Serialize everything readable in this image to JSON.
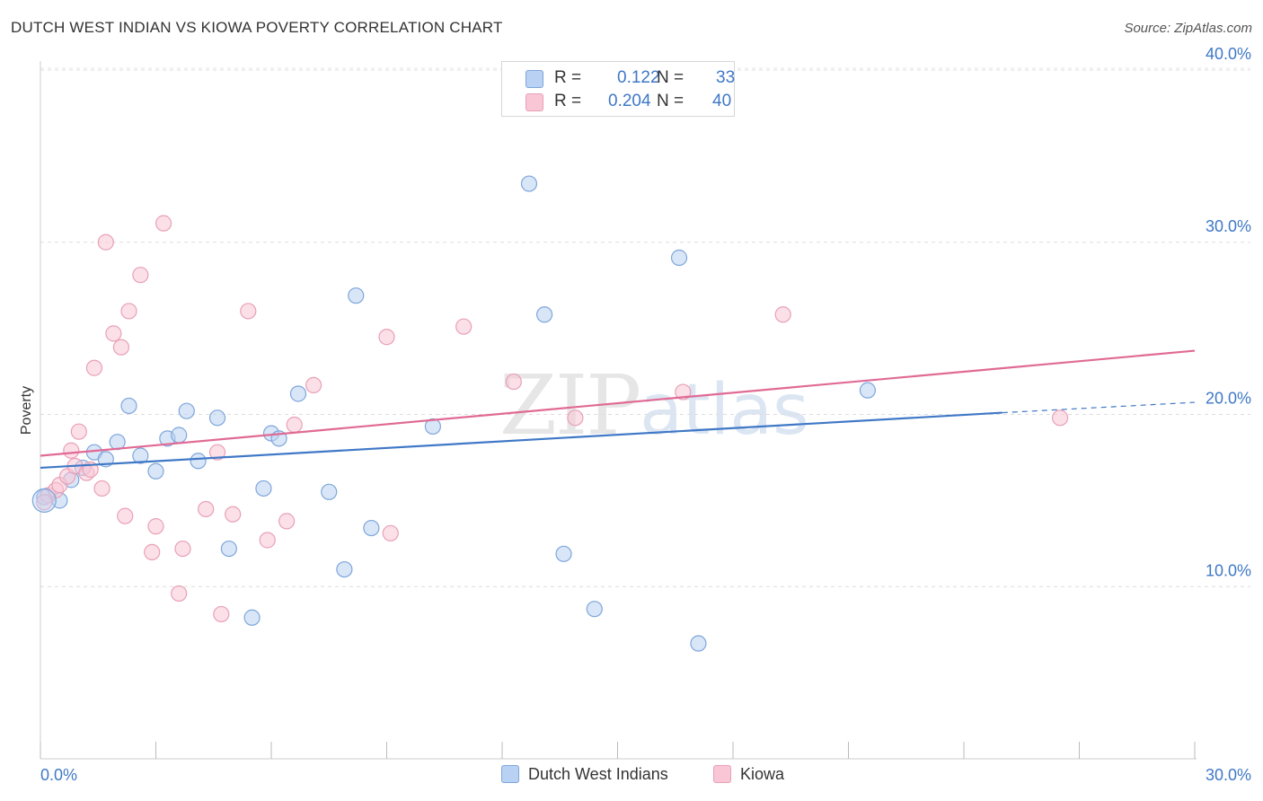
{
  "title": "DUTCH WEST INDIAN VS KIOWA POVERTY CORRELATION CHART",
  "source": "Source: ZipAtlas.com",
  "watermark": {
    "zip": "ZIP",
    "atlas": "atlas"
  },
  "legend": {
    "rows": [
      {
        "r_label": "R =",
        "r_value": "0.122",
        "n_label": "N =",
        "n_value": "33",
        "color": "#b9d2f3",
        "border": "#7ea6da"
      },
      {
        "r_label": "R =",
        "r_value": "0.204",
        "n_label": "N =",
        "n_value": "40",
        "color": "#f9c6d6",
        "border": "#e8a0b8"
      }
    ]
  },
  "bottom_legend": [
    {
      "label": "Dutch West Indians",
      "color": "#b9d2f3",
      "border": "#7ea6da"
    },
    {
      "label": "Kiowa",
      "color": "#f9c6d6",
      "border": "#e8a0b8"
    }
  ],
  "chart_data": {
    "type": "scatter",
    "title": "DUTCH WEST INDIAN VS KIOWA POVERTY CORRELATION CHART",
    "xlabel": "",
    "ylabel": "Poverty",
    "xlim": [
      0,
      30
    ],
    "ylim": [
      0,
      40
    ],
    "x_tick_labels": [
      "0.0%",
      "30.0%"
    ],
    "y_ticks": [
      10,
      20,
      30,
      40
    ],
    "y_tick_labels": [
      "10.0%",
      "20.0%",
      "30.0%",
      "40.0%"
    ],
    "grid": true,
    "series": [
      {
        "name": "Dutch West Indians",
        "color": "#7ea6da",
        "fill": "#b9d2f3",
        "line_color": "#3f78c6",
        "trend": {
          "x0": 0,
          "y0": 16.9,
          "x1": 25,
          "y1": 20.1,
          "dash_to_x": 30,
          "dash_to_y": 20.7
        },
        "points": [
          [
            0.1,
            15.2
          ],
          [
            0.5,
            15.0
          ],
          [
            0.8,
            16.2
          ],
          [
            1.1,
            16.9
          ],
          [
            1.4,
            17.8
          ],
          [
            1.7,
            17.4
          ],
          [
            2.0,
            18.4
          ],
          [
            2.3,
            20.5
          ],
          [
            2.6,
            17.6
          ],
          [
            3.0,
            16.7
          ],
          [
            3.3,
            18.6
          ],
          [
            3.6,
            18.8
          ],
          [
            3.8,
            20.2
          ],
          [
            4.1,
            17.3
          ],
          [
            4.6,
            19.8
          ],
          [
            4.9,
            12.2
          ],
          [
            5.5,
            8.2
          ],
          [
            5.8,
            15.7
          ],
          [
            6.0,
            18.9
          ],
          [
            6.2,
            18.6
          ],
          [
            6.7,
            21.2
          ],
          [
            7.5,
            15.5
          ],
          [
            7.9,
            11.0
          ],
          [
            8.2,
            26.9
          ],
          [
            8.6,
            13.4
          ],
          [
            10.2,
            19.3
          ],
          [
            12.7,
            33.4
          ],
          [
            13.1,
            25.8
          ],
          [
            13.6,
            11.9
          ],
          [
            14.4,
            8.7
          ],
          [
            16.6,
            29.1
          ],
          [
            17.1,
            6.7
          ],
          [
            21.5,
            21.4
          ]
        ]
      },
      {
        "name": "Kiowa",
        "color": "#e8a0b8",
        "fill": "#f9c6d6",
        "line_color": "#e06a94",
        "trend": {
          "x0": 0,
          "y0": 17.6,
          "x1": 30,
          "y1": 23.7
        },
        "points": [
          [
            0.2,
            15.3
          ],
          [
            0.4,
            15.6
          ],
          [
            0.5,
            15.9
          ],
          [
            0.7,
            16.4
          ],
          [
            0.8,
            17.9
          ],
          [
            0.9,
            17.0
          ],
          [
            1.0,
            19.0
          ],
          [
            1.2,
            16.6
          ],
          [
            1.3,
            16.8
          ],
          [
            1.4,
            22.7
          ],
          [
            1.6,
            15.7
          ],
          [
            1.7,
            30.0
          ],
          [
            1.9,
            24.7
          ],
          [
            2.1,
            23.9
          ],
          [
            2.2,
            14.1
          ],
          [
            2.3,
            26.0
          ],
          [
            2.6,
            28.1
          ],
          [
            2.9,
            12.0
          ],
          [
            3.2,
            31.1
          ],
          [
            3.0,
            13.5
          ],
          [
            3.6,
            9.6
          ],
          [
            3.7,
            12.2
          ],
          [
            4.3,
            14.5
          ],
          [
            4.6,
            17.8
          ],
          [
            4.7,
            8.4
          ],
          [
            5.0,
            14.2
          ],
          [
            5.4,
            26.0
          ],
          [
            5.9,
            12.7
          ],
          [
            6.4,
            13.8
          ],
          [
            6.6,
            19.4
          ],
          [
            7.1,
            21.7
          ],
          [
            9.0,
            24.5
          ],
          [
            9.1,
            13.1
          ],
          [
            11.0,
            25.1
          ],
          [
            12.3,
            21.9
          ],
          [
            13.9,
            19.8
          ],
          [
            16.7,
            21.3
          ],
          [
            19.3,
            25.8
          ],
          [
            26.5,
            19.8
          ],
          [
            0.1,
            14.9
          ]
        ]
      }
    ]
  }
}
